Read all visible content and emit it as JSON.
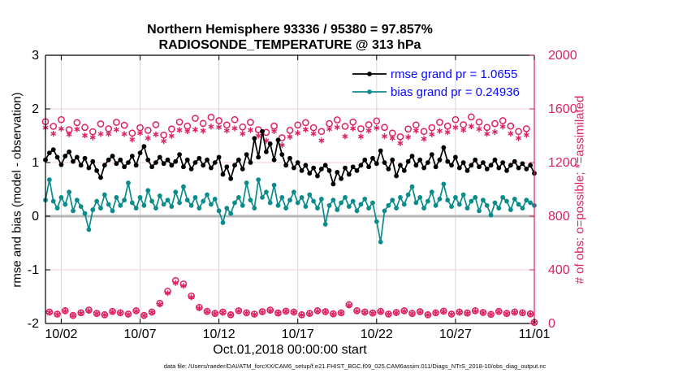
{
  "title": {
    "line1": "Northern Hemisphere 93336 / 95380 = 97.857%",
    "line2": "RADIOSONDE_TEMPERATURE @ 313 hPa"
  },
  "axes": {
    "left_label": "rmse and bias (model - observation)",
    "right_label": "# of obs: o=possible; *=assimilated",
    "x_label": "Oct.01,2018 00:00:00 start",
    "left_ticks": [
      3,
      2,
      1,
      0,
      -1,
      -2
    ],
    "right_ticks": [
      2000,
      1600,
      1200,
      800,
      400,
      0
    ],
    "x_tick_labels": [
      "10/02",
      "10/07",
      "10/12",
      "10/17",
      "10/22",
      "10/27",
      "11/01"
    ],
    "x_tick_days": [
      1,
      6,
      11,
      16,
      21,
      26,
      31
    ]
  },
  "legend": {
    "items": [
      {
        "label": "rmse grand pr = 1.0655",
        "color": "#000000"
      },
      {
        "label": "bias grand pr = 0.24936",
        "color": "#0b8c8c"
      }
    ],
    "text_color": "#0909ff"
  },
  "footer": "data file: /Users/raeder/DAI/ATM_forcXX/CAM6_setup/f.e21.FHIST_BGC.f09_025.CAM6assim.011/Diags_NTrS_2018-10/obs_diag_output.nc",
  "colors": {
    "obs_pink": "#dd2161",
    "grid_vertical": "#d6d6d6",
    "grid_horizontal": "#f3cdd9",
    "zero_line": "#b5b5b5",
    "axis_black": "#000000"
  },
  "chart_data": {
    "type": "line",
    "title": "Northern Hemisphere 93336 / 95380 = 97.857% | RADIOSONDE_TEMPERATURE @ 313 hPa",
    "x_start_day": 0,
    "x_step_day": 0.25,
    "x_range_days": [
      0,
      31
    ],
    "left_axis_range": [
      -2,
      3
    ],
    "right_axis_range": [
      0,
      2000
    ],
    "grid": true,
    "series": [
      {
        "name": "rmse",
        "axis": "left",
        "color": "#000000",
        "marker": "dot",
        "line": true,
        "values": [
          1.05,
          1.18,
          1.24,
          1.1,
          0.96,
          1.12,
          1.2,
          1.02,
          1.1,
          0.95,
          1.08,
          0.9,
          1.02,
          0.85,
          0.72,
          0.95,
          1.05,
          1.12,
          0.98,
          1.05,
          0.92,
          1.0,
          1.12,
          0.95,
          1.18,
          1.3,
          1.05,
          0.92,
          1.0,
          1.1,
          0.98,
          1.05,
          0.95,
          1.02,
          1.15,
          0.92,
          1.05,
          0.88,
          1.0,
          1.08,
          0.95,
          1.05,
          0.9,
          1.0,
          1.1,
          0.78,
          0.92,
          0.7,
          0.95,
          1.05,
          0.88,
          1.15,
          1.0,
          1.45,
          1.1,
          1.58,
          1.2,
          1.35,
          1.05,
          1.42,
          1.15,
          0.95,
          1.08,
          0.9,
          1.0,
          0.85,
          0.95,
          0.8,
          0.9,
          0.75,
          0.88,
          0.95,
          0.85,
          0.6,
          0.82,
          0.7,
          0.9,
          0.78,
          0.92,
          0.85,
          0.95,
          1.05,
          0.92,
          1.08,
          0.98,
          1.22,
          1.0,
          0.88,
          1.05,
          0.75,
          0.95,
          0.85,
          1.02,
          1.12,
          0.95,
          1.05,
          0.9,
          1.0,
          1.15,
          0.92,
          1.05,
          1.28,
          1.02,
          0.95,
          1.1,
          0.9,
          1.0,
          0.85,
          0.95,
          1.05,
          0.92,
          1.0,
          0.88,
          0.95,
          1.05,
          0.9,
          1.0,
          0.85,
          0.95,
          1.02,
          0.9,
          0.98,
          0.88,
          0.95,
          0.8
        ]
      },
      {
        "name": "bias",
        "axis": "left",
        "color": "#0b8c8c",
        "marker": "dot",
        "line": true,
        "values": [
          0.3,
          0.68,
          0.28,
          0.15,
          0.35,
          0.22,
          0.45,
          0.1,
          0.3,
          0.18,
          0.05,
          -0.25,
          0.12,
          0.28,
          0.15,
          0.4,
          0.22,
          0.1,
          0.35,
          0.2,
          0.3,
          0.62,
          0.25,
          0.15,
          0.35,
          0.2,
          0.48,
          0.28,
          0.15,
          0.38,
          0.22,
          0.3,
          0.18,
          0.45,
          0.25,
          0.55,
          0.3,
          0.2,
          0.35,
          0.15,
          0.28,
          0.4,
          0.22,
          0.32,
          0.1,
          -0.12,
          0.15,
          0.05,
          0.25,
          0.35,
          0.2,
          0.62,
          0.3,
          0.15,
          0.68,
          0.35,
          0.45,
          0.25,
          0.58,
          0.2,
          0.35,
          0.15,
          0.3,
          0.45,
          0.25,
          0.35,
          0.18,
          0.4,
          0.28,
          0.15,
          0.32,
          -0.15,
          0.2,
          0.3,
          0.12,
          0.25,
          0.35,
          0.18,
          0.28,
          0.1,
          0.22,
          0.32,
          0.15,
          0.25,
          -0.1,
          -0.48,
          0.1,
          0.2,
          0.3,
          0.15,
          0.35,
          0.22,
          0.4,
          0.55,
          0.25,
          0.35,
          0.15,
          0.28,
          0.45,
          0.2,
          0.32,
          0.6,
          0.3,
          0.18,
          0.35,
          0.22,
          0.4,
          0.15,
          0.28,
          0.35,
          0.1,
          0.3,
          0.2,
          0.02,
          0.25,
          0.15,
          0.35,
          0.28,
          0.12,
          0.32,
          0.22,
          0.15,
          0.3,
          0.25,
          0.2
        ]
      },
      {
        "name": "possible",
        "axis": "right",
        "color": "#dd2161",
        "marker": "circle",
        "line": false,
        "values": [
          1505,
          85,
          1470,
          70,
          1520,
          95,
          1445,
          60,
          1498,
          80,
          1462,
          100,
          1430,
          75,
          1488,
          65,
          1452,
          90,
          1500,
          80,
          1478,
          70,
          1420,
          95,
          1460,
          60,
          1440,
          85,
          1482,
          150,
          1405,
          240,
          1450,
          320,
          1502,
          295,
          1472,
          205,
          1530,
          120,
          1492,
          90,
          1538,
          75,
          1512,
          85,
          1480,
          65,
          1520,
          95,
          1465,
          80,
          1500,
          70,
          1445,
          88,
          1425,
          100,
          1472,
          78,
          1385,
          92,
          1440,
          85,
          1480,
          65,
          1498,
          75,
          1460,
          95,
          1432,
          88,
          1490,
          72,
          1518,
          80,
          1470,
          140,
          1502,
          95,
          1452,
          85,
          1482,
          78,
          1510,
          90,
          1462,
          70,
          1420,
          82,
          1392,
          95,
          1450,
          75,
          1480,
          88,
          1432,
          65,
          1460,
          80,
          1500,
          92,
          1472,
          70,
          1520,
          85,
          1482,
          78,
          1540,
          95,
          1502,
          82,
          1462,
          68,
          1490,
          90,
          1512,
          75,
          1472,
          85,
          1432,
          80,
          1452,
          72,
          8
        ]
      },
      {
        "name": "assimilated",
        "axis": "right",
        "color": "#dd2161",
        "marker": "asterisk",
        "line": false,
        "values": [
          1460,
          82,
          1415,
          68,
          1452,
          91,
          1410,
          59,
          1448,
          77,
          1402,
          95,
          1388,
          73,
          1413,
          64,
          1414,
          86,
          1445,
          78,
          1413,
          67,
          1372,
          91,
          1420,
          59,
          1382,
          82,
          1410,
          142,
          1360,
          226,
          1398,
          302,
          1442,
          280,
          1434,
          195,
          1445,
          114,
          1437,
          87,
          1468,
          73,
          1464,
          81,
          1438,
          64,
          1455,
          92,
          1415,
          78,
          1442,
          67,
          1400,
          84,
          1363,
          95,
          1434,
          76,
          1330,
          89,
          1392,
          83,
          1420,
          64,
          1446,
          72,
          1415,
          91,
          1364,
          86,
          1450,
          69,
          1463,
          78,
          1395,
          134,
          1454,
          91,
          1394,
          82,
          1438,
          76,
          1458,
          86,
          1396,
          69,
          1382,
          79,
          1344,
          91,
          1390,
          73,
          1438,
          85,
          1377,
          64,
          1410,
          78,
          1436,
          88,
          1426,
          68,
          1462,
          82,
          1442,
          76,
          1470,
          91,
          1450,
          79,
          1414,
          67,
          1428,
          87,
          1468,
          73,
          1416,
          82,
          1382,
          78,
          1406,
          70,
          8
        ]
      }
    ]
  }
}
